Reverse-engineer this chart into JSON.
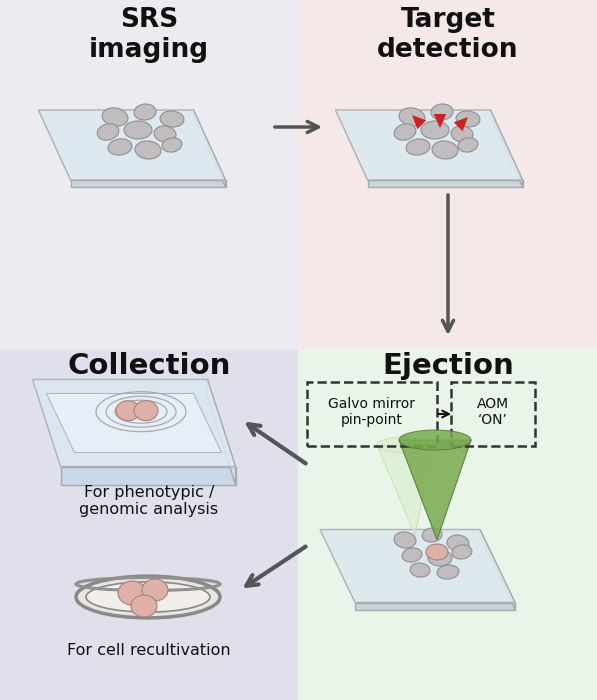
{
  "bg_top_left": "#ebebf0",
  "bg_top_right": "#f5e8e8",
  "bg_bot_left": "#e0e0ec",
  "bg_bot_right": "#e8f5e8",
  "title_tl": "SRS\nimaging",
  "title_tr": "Target\ndetection",
  "title_bl": "Collection",
  "title_br": "Ejection",
  "label_phenotypic": "For phenotypic /\ngenomic analysis",
  "label_recultivation": "For cell recultivation",
  "box1_text": "Galvo mirror\npin-point",
  "box2_text": "AOM\n‘ON’",
  "red_arrow_color": "#cc2222",
  "dark_arrow_color": "#555555",
  "slide_fill": "#dce8f0",
  "slide_edge": "#aaaaaa",
  "slide_thick_fill": "#c8d4dc",
  "slide_side_fill": "#d0dce8",
  "green_dark": "#4a7a30",
  "green_mid": "#7aaa50",
  "green_light": "#c0dca0",
  "green_pale": "#dcecd0",
  "cell_gray": "#c0bcc0",
  "cell_gray_edge": "#909090",
  "cell_pink": "#ddb0a8",
  "cell_pink_edge": "#aa8080",
  "dish_fill": "#e8e4e0",
  "dish_inner": "#f0ece8",
  "dish_edge": "#888888",
  "tray_fill": "#e8eff5",
  "tray_edge": "#aaaaaa",
  "box_edge": "#333333",
  "well_fill": "#f0f0f0",
  "well_edge": "#aaaaaa"
}
